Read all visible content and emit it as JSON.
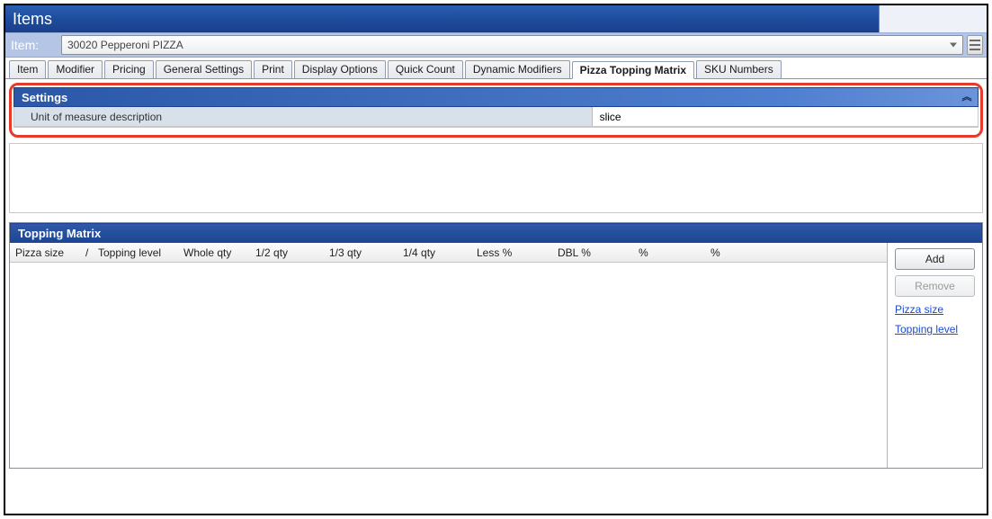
{
  "window": {
    "title": "Items"
  },
  "item": {
    "label": "Item:",
    "value": "30020 Pepperoni PIZZA"
  },
  "tabs": [
    {
      "label": "Item",
      "active": false
    },
    {
      "label": "Modifier",
      "active": false
    },
    {
      "label": "Pricing",
      "active": false
    },
    {
      "label": "General Settings",
      "active": false
    },
    {
      "label": "Print",
      "active": false
    },
    {
      "label": "Display Options",
      "active": false
    },
    {
      "label": "Quick Count",
      "active": false
    },
    {
      "label": "Dynamic Modifiers",
      "active": false
    },
    {
      "label": "Pizza Topping Matrix",
      "active": true
    },
    {
      "label": "SKU Numbers",
      "active": false
    }
  ],
  "settings": {
    "panel_title": "Settings",
    "fields": [
      {
        "label": "Unit of measure description",
        "value": "slice"
      }
    ]
  },
  "topping_matrix": {
    "panel_title": "Topping Matrix",
    "columns": [
      "Pizza size",
      "/",
      "Topping level",
      "Whole qty",
      "1/2 qty",
      "1/3 qty",
      "1/4 qty",
      "Less %",
      "DBL %",
      "%",
      "%"
    ],
    "buttons": {
      "add": "Add",
      "remove": "Remove"
    },
    "links": {
      "pizza_size": "Pizza size",
      "topping_level": "Topping level"
    }
  },
  "colors": {
    "highlight_border": "#e63a2a",
    "header_blue_dark": "#1e4ea0",
    "header_blue_light": "#4f7fd0",
    "row_blue": "#b4c5e6",
    "link": "#1a4bd1"
  }
}
